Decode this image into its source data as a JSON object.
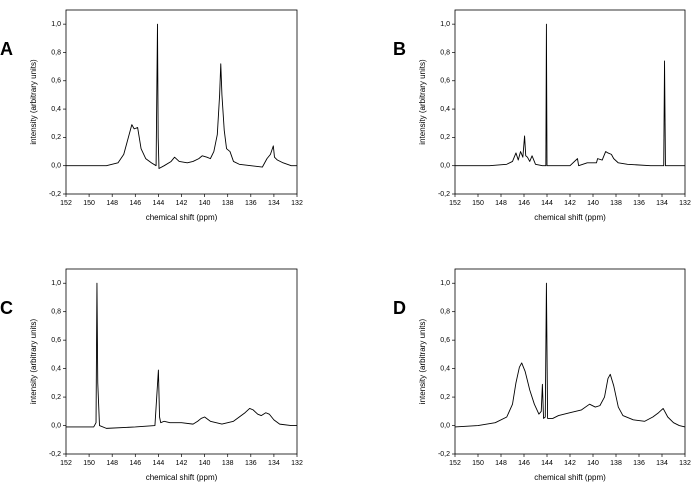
{
  "chart_data": [
    {
      "type": "line",
      "label": "A",
      "xlabel": "chemical shift (ppm)",
      "ylabel": "intensity (arbitrary units)",
      "xlim": [
        152,
        132
      ],
      "ylim": [
        -0.2,
        1.1
      ],
      "xticks": [
        152,
        150,
        148,
        146,
        144,
        142,
        140,
        138,
        136,
        134,
        132
      ],
      "yticks": [
        {
          "value": -0.2,
          "label": "-0,2"
        },
        {
          "value": 0,
          "label": "0,0"
        },
        {
          "value": 0.2,
          "label": "0,2"
        },
        {
          "value": 0.4,
          "label": "0,4"
        },
        {
          "value": 0.6,
          "label": "0,6"
        },
        {
          "value": 0.8,
          "label": "0,8"
        },
        {
          "value": 1.0,
          "label": "1,0"
        }
      ],
      "color": "#000000",
      "x": [
        152,
        150,
        148.5,
        147.5,
        147,
        146.6,
        146.3,
        146.1,
        145.8,
        145.5,
        145.1,
        144.6,
        144.2,
        144.08,
        144.02,
        143.95,
        143.5,
        142.9,
        142.6,
        142.2,
        141.5,
        141,
        140.5,
        140.2,
        139.8,
        139.5,
        139.2,
        138.9,
        138.7,
        138.6,
        138.5,
        138.3,
        138.1,
        137.8,
        137.5,
        137,
        136,
        135,
        134.6,
        134.3,
        134.05,
        133.95,
        133.7,
        133.2,
        132.5,
        132
      ],
      "values": [
        0.0,
        0.0,
        0.0,
        0.02,
        0.08,
        0.2,
        0.29,
        0.26,
        0.27,
        0.12,
        0.05,
        0.02,
        0.0,
        1.0,
        0.2,
        -0.02,
        0.0,
        0.03,
        0.06,
        0.03,
        0.02,
        0.03,
        0.05,
        0.07,
        0.06,
        0.05,
        0.1,
        0.22,
        0.5,
        0.72,
        0.5,
        0.25,
        0.12,
        0.1,
        0.03,
        0.01,
        0.0,
        -0.01,
        0.05,
        0.08,
        0.14,
        0.06,
        0.04,
        0.02,
        0.0,
        0.0
      ]
    },
    {
      "type": "line",
      "label": "B",
      "xlabel": "chemical shift (ppm)",
      "ylabel": "intensity (arbitrary units)",
      "xlim": [
        152,
        132
      ],
      "ylim": [
        -0.2,
        1.1
      ],
      "xticks": [
        152,
        150,
        148,
        146,
        144,
        142,
        140,
        138,
        136,
        134,
        132
      ],
      "yticks": [
        {
          "value": -0.2,
          "label": "-0,2"
        },
        {
          "value": 0,
          "label": "0,0"
        },
        {
          "value": 0.2,
          "label": "0,2"
        },
        {
          "value": 0.4,
          "label": "0,4"
        },
        {
          "value": 0.6,
          "label": "0,6"
        },
        {
          "value": 0.8,
          "label": "0,8"
        },
        {
          "value": 1.0,
          "label": "1,0"
        }
      ],
      "color": "#000000",
      "x": [
        152,
        149,
        147.5,
        147,
        146.7,
        146.5,
        146.3,
        146.1,
        145.95,
        145.85,
        145.7,
        145.5,
        145.3,
        145,
        144.4,
        144.1,
        144.05,
        144,
        143.6,
        142,
        141.35,
        141.25,
        140.5,
        139.7,
        139.6,
        139.2,
        138.9,
        138.7,
        138.4,
        138.2,
        137.8,
        137,
        135,
        134.2,
        133.85,
        133.78,
        133.7,
        133,
        132
      ],
      "values": [
        0.0,
        0.0,
        0.01,
        0.03,
        0.09,
        0.04,
        0.1,
        0.06,
        0.21,
        0.07,
        0.06,
        0.03,
        0.07,
        0.01,
        0.0,
        0.0,
        1.0,
        0.0,
        0.0,
        0.0,
        0.05,
        0.0,
        0.02,
        0.02,
        0.05,
        0.04,
        0.1,
        0.09,
        0.08,
        0.05,
        0.02,
        0.01,
        0.0,
        0.0,
        0.0,
        0.74,
        0.0,
        0.0,
        0.0
      ]
    },
    {
      "type": "line",
      "label": "C",
      "xlabel": "chemical shift (ppm)",
      "ylabel": "intensity (arbitrary units)",
      "xlim": [
        152,
        132
      ],
      "ylim": [
        -0.2,
        1.1
      ],
      "xticks": [
        152,
        150,
        148,
        146,
        144,
        142,
        140,
        138,
        136,
        134,
        132
      ],
      "yticks": [
        {
          "value": -0.2,
          "label": "-0,2"
        },
        {
          "value": 0,
          "label": "0,0"
        },
        {
          "value": 0.2,
          "label": "0,2"
        },
        {
          "value": 0.4,
          "label": "0,4"
        },
        {
          "value": 0.6,
          "label": "0,6"
        },
        {
          "value": 0.8,
          "label": "0,8"
        },
        {
          "value": 1.0,
          "label": "1,0"
        }
      ],
      "color": "#000000",
      "x": [
        152,
        150.5,
        149.6,
        149.4,
        149.32,
        149.25,
        149.1,
        148.5,
        146,
        144.3,
        144.0,
        143.9,
        143.8,
        143.5,
        143,
        142,
        141,
        140.6,
        140.3,
        140,
        139.5,
        138.5,
        137.5,
        137,
        136.5,
        136.1,
        135.8,
        135.4,
        135.1,
        134.7,
        134.4,
        134,
        133.5,
        132.5,
        132
      ],
      "values": [
        -0.01,
        -0.01,
        -0.01,
        0.02,
        1.0,
        0.3,
        0.0,
        -0.02,
        -0.01,
        0.0,
        0.39,
        0.06,
        0.02,
        0.03,
        0.02,
        0.02,
        0.01,
        0.03,
        0.05,
        0.06,
        0.03,
        0.01,
        0.03,
        0.06,
        0.09,
        0.12,
        0.11,
        0.08,
        0.07,
        0.09,
        0.08,
        0.04,
        0.01,
        0.0,
        0.0
      ]
    },
    {
      "type": "line",
      "label": "D",
      "xlabel": "chemical shift (ppm)",
      "ylabel": "intensity (arbitrary units)",
      "xlim": [
        152,
        132
      ],
      "ylim": [
        -0.2,
        1.1
      ],
      "xticks": [
        152,
        150,
        148,
        146,
        144,
        142,
        140,
        138,
        136,
        134,
        132
      ],
      "yticks": [
        {
          "value": -0.2,
          "label": "-0,2"
        },
        {
          "value": 0,
          "label": "0,0"
        },
        {
          "value": 0.2,
          "label": "0,2"
        },
        {
          "value": 0.4,
          "label": "0,4"
        },
        {
          "value": 0.6,
          "label": "0,6"
        },
        {
          "value": 0.8,
          "label": "0,8"
        },
        {
          "value": 1.0,
          "label": "1,0"
        }
      ],
      "color": "#000000",
      "x": [
        152,
        150,
        148.5,
        147.5,
        147,
        146.7,
        146.4,
        146.2,
        145.9,
        145.5,
        145.1,
        144.7,
        144.5,
        144.4,
        144.3,
        144.15,
        144.05,
        143.95,
        143.5,
        143,
        142,
        141,
        140.3,
        139.8,
        139.4,
        139,
        138.7,
        138.5,
        138.2,
        137.8,
        137.4,
        136.5,
        135.5,
        134.8,
        134.3,
        133.9,
        133.5,
        133,
        132.5,
        132
      ],
      "values": [
        -0.01,
        0.0,
        0.02,
        0.06,
        0.15,
        0.3,
        0.41,
        0.44,
        0.38,
        0.25,
        0.15,
        0.08,
        0.1,
        0.29,
        0.05,
        0.06,
        1.0,
        0.05,
        0.05,
        0.07,
        0.09,
        0.11,
        0.15,
        0.13,
        0.14,
        0.2,
        0.33,
        0.36,
        0.28,
        0.13,
        0.07,
        0.04,
        0.03,
        0.06,
        0.09,
        0.12,
        0.06,
        0.02,
        0.0,
        -0.01
      ]
    }
  ]
}
